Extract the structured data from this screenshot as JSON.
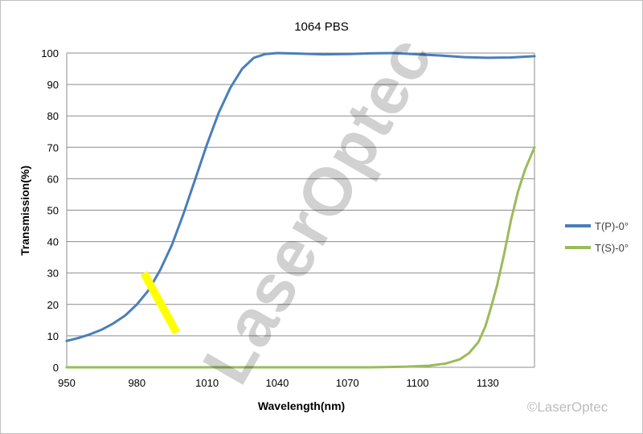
{
  "chart_data": {
    "type": "line",
    "title": "1064 PBS",
    "xlabel": "Wavelength(nm)",
    "ylabel": "Transmission(%)",
    "xlim": [
      950,
      1150
    ],
    "ylim": [
      0,
      100
    ],
    "x_ticks": [
      "950",
      "980",
      "1010",
      "1040",
      "1070",
      "1100",
      "1130"
    ],
    "y_ticks": [
      "0",
      "10",
      "20",
      "30",
      "40",
      "50",
      "60",
      "70",
      "80",
      "90",
      "100"
    ],
    "grid": "horizontal",
    "legend_position": "right",
    "series": [
      {
        "name": "T(P)-0°",
        "color": "#4a7ebb",
        "points": [
          [
            950,
            8.4
          ],
          [
            955,
            9.3
          ],
          [
            960,
            10.5
          ],
          [
            965,
            12
          ],
          [
            970,
            14
          ],
          [
            975,
            16.5
          ],
          [
            980,
            20
          ],
          [
            985,
            24.5
          ],
          [
            990,
            31
          ],
          [
            995,
            39
          ],
          [
            1000,
            49
          ],
          [
            1005,
            60
          ],
          [
            1010,
            71
          ],
          [
            1015,
            81
          ],
          [
            1020,
            89
          ],
          [
            1025,
            95
          ],
          [
            1030,
            98.5
          ],
          [
            1035,
            99.7
          ],
          [
            1040,
            100
          ],
          [
            1050,
            99.8
          ],
          [
            1060,
            99.6
          ],
          [
            1070,
            99.7
          ],
          [
            1080,
            99.9
          ],
          [
            1090,
            100
          ],
          [
            1100,
            99.6
          ],
          [
            1110,
            99.2
          ],
          [
            1120,
            98.7
          ],
          [
            1130,
            98.5
          ],
          [
            1140,
            98.6
          ],
          [
            1150,
            99
          ]
        ]
      },
      {
        "name": "T(S)-0°",
        "color": "#9bbb59",
        "points": [
          [
            950,
            0
          ],
          [
            1080,
            0
          ],
          [
            1095,
            0.2
          ],
          [
            1105,
            0.5
          ],
          [
            1112,
            1.2
          ],
          [
            1118,
            2.5
          ],
          [
            1122,
            4.5
          ],
          [
            1126,
            8
          ],
          [
            1129,
            13
          ],
          [
            1131,
            18
          ],
          [
            1134,
            26
          ],
          [
            1137,
            36
          ],
          [
            1140,
            47
          ],
          [
            1143,
            56
          ],
          [
            1146,
            63
          ],
          [
            1150,
            70
          ]
        ]
      }
    ],
    "annotations": [
      {
        "type": "highlight-bar",
        "color": "#ffff00",
        "x": [
          983,
          997
        ],
        "y": [
          30,
          11
        ]
      }
    ]
  },
  "watermark": "LaserOptec",
  "copyright": "©LaserOptec"
}
